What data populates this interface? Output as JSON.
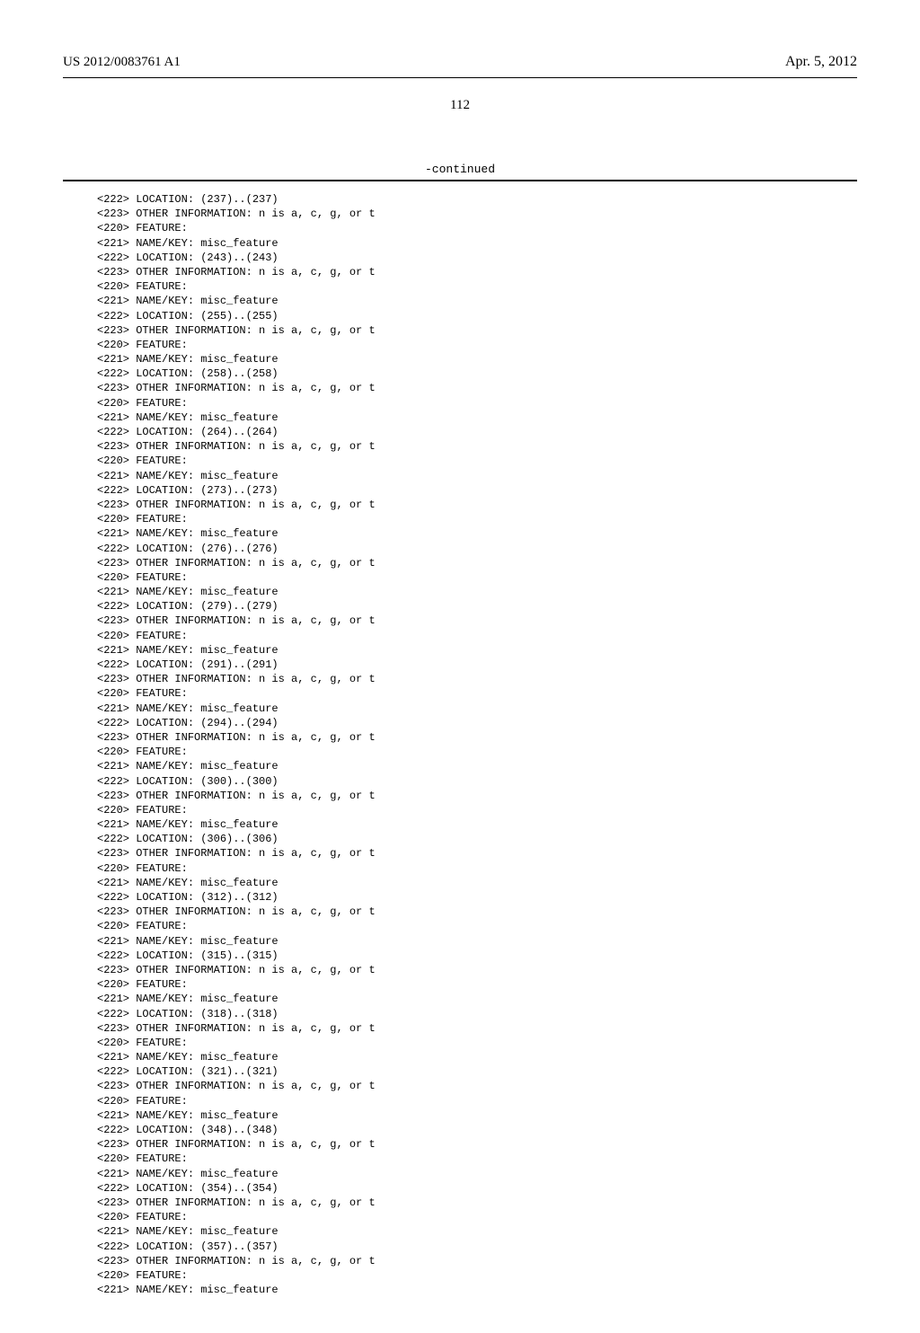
{
  "header": {
    "publication_number": "US 2012/0083761 A1",
    "publication_date": "Apr. 5, 2012"
  },
  "page_number": "112",
  "continued_label": "-continued",
  "locations": [
    "237",
    "243",
    "255",
    "258",
    "264",
    "273",
    "276",
    "279",
    "291",
    "294",
    "300",
    "306",
    "312",
    "315",
    "318",
    "321",
    "348",
    "354",
    "357"
  ],
  "strings": {
    "loc_prefix": "<222> LOCATION: (",
    "loc_mid": ")..(",
    "loc_suffix": ")",
    "info": "<223> OTHER INFORMATION: n is a, c, g, or t",
    "feature": "<220> FEATURE:",
    "namekey": "<221> NAME/KEY: misc_feature"
  }
}
